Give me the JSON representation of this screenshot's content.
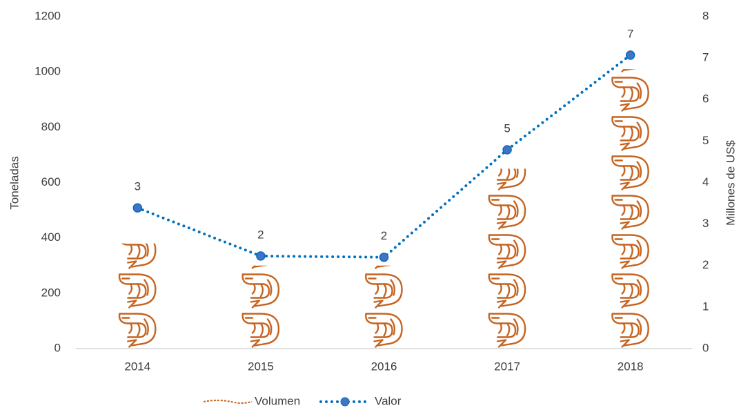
{
  "chart_data": {
    "type": "bar",
    "categories": [
      "2014",
      "2015",
      "2016",
      "2017",
      "2018"
    ],
    "series": [
      {
        "name": "Volumen",
        "type": "pictograph",
        "color": "#c5621e",
        "values": [
          380,
          300,
          300,
          650,
          1010
        ]
      },
      {
        "name": "Valor",
        "type": "line",
        "axis": "y2",
        "color": "#0070c0",
        "values": [
          3.39,
          2.23,
          2.2,
          4.79,
          7.07
        ],
        "value_labels": [
          "3",
          "2",
          "2",
          "5",
          "7"
        ]
      }
    ],
    "ylabel": "Toneladas",
    "y2label": "Millones de US$",
    "ylim": [
      0,
      1200
    ],
    "yticks": [
      0,
      200,
      400,
      600,
      800,
      1000,
      1200
    ],
    "y2lim": [
      0,
      8
    ],
    "y2ticks": [
      0,
      1,
      2,
      3,
      4,
      5,
      6,
      7,
      8
    ],
    "legend": "bottom"
  }
}
